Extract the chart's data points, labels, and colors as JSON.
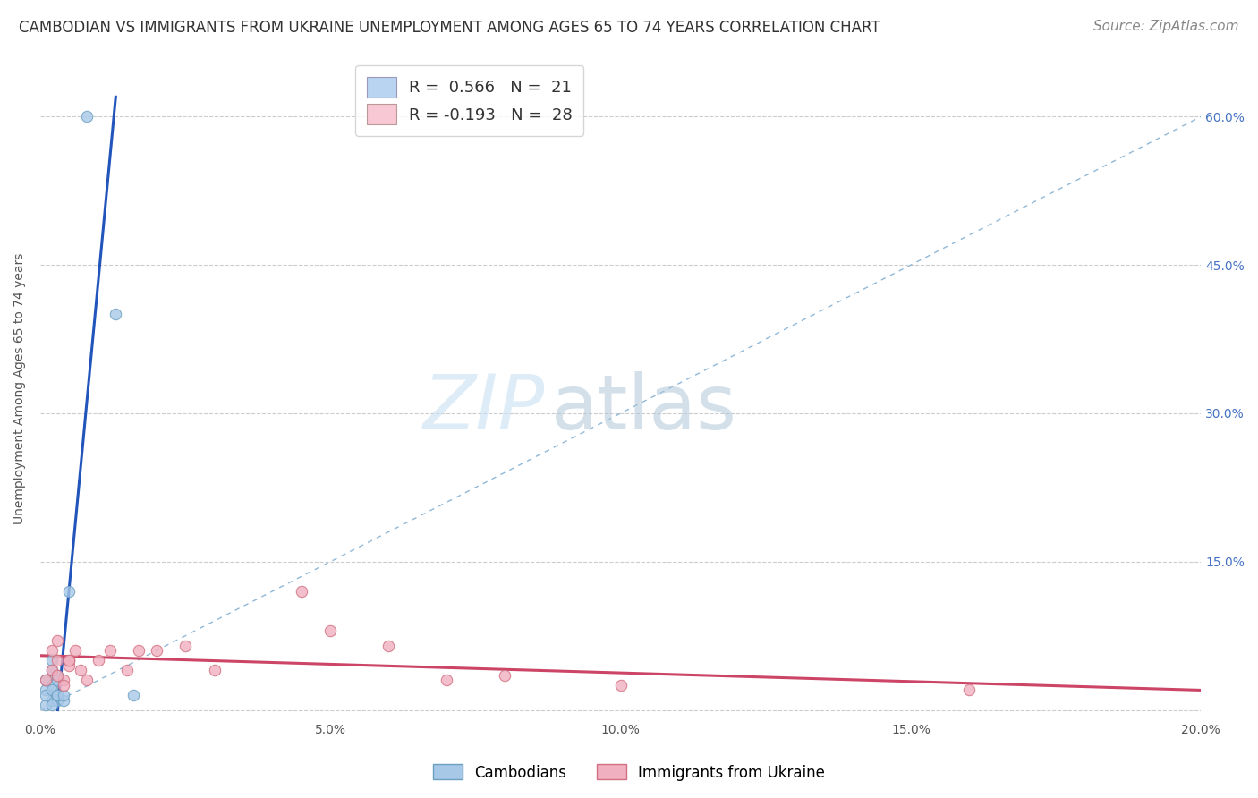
{
  "title": "CAMBODIAN VS IMMIGRANTS FROM UKRAINE UNEMPLOYMENT AMONG AGES 65 TO 74 YEARS CORRELATION CHART",
  "source": "Source: ZipAtlas.com",
  "ylabel": "Unemployment Among Ages 65 to 74 years",
  "xlim": [
    0.0,
    0.2
  ],
  "ylim": [
    -0.01,
    0.66
  ],
  "xtick_positions": [
    0.0,
    0.0125,
    0.025,
    0.0375,
    0.05,
    0.0625,
    0.075,
    0.0875,
    0.1,
    0.1125,
    0.125,
    0.1375,
    0.15,
    0.1625,
    0.175,
    0.1875,
    0.2
  ],
  "xtick_labels": [
    "0.0%",
    "",
    "",
    "",
    "5.0%",
    "",
    "",
    "",
    "10.0%",
    "",
    "",
    "",
    "15.0%",
    "",
    "",
    "",
    "20.0%"
  ],
  "ytick_vals": [
    0.0,
    0.15,
    0.3,
    0.45,
    0.6
  ],
  "ytick_labels_right": [
    "",
    "15.0%",
    "30.0%",
    "45.0%",
    "60.0%"
  ],
  "grid_color": "#cccccc",
  "background_color": "#ffffff",
  "cambodian_color": "#a8c8e8",
  "ukraine_color": "#f0b0c0",
  "cambodian_edge": "#6a9fc0",
  "ukraine_edge": "#d07080",
  "legend_box_color1": "#b8d4f0",
  "legend_box_color2": "#f8c8d4",
  "cambodian_trend_color": "#2255bb",
  "ukraine_trend_color": "#cc4466",
  "ref_line_color": "#90b8d8",
  "cambodian_points_x": [
    0.001,
    0.002,
    0.001,
    0.003,
    0.001,
    0.002,
    0.002,
    0.003,
    0.002,
    0.001,
    0.002,
    0.003,
    0.004,
    0.002,
    0.003,
    0.003,
    0.004,
    0.005,
    0.013,
    0.008,
    0.016
  ],
  "cambodian_points_y": [
    0.005,
    0.01,
    0.02,
    0.01,
    0.03,
    0.025,
    0.04,
    0.035,
    0.05,
    0.015,
    0.02,
    0.015,
    0.01,
    0.005,
    0.03,
    0.015,
    0.015,
    0.12,
    0.4,
    0.6,
    0.015
  ],
  "ukraine_points_x": [
    0.001,
    0.002,
    0.003,
    0.004,
    0.002,
    0.003,
    0.004,
    0.005,
    0.003,
    0.005,
    0.006,
    0.007,
    0.005,
    0.008,
    0.01,
    0.012,
    0.015,
    0.017,
    0.02,
    0.025,
    0.03,
    0.045,
    0.05,
    0.06,
    0.07,
    0.08,
    0.1,
    0.16
  ],
  "ukraine_points_y": [
    0.03,
    0.04,
    0.05,
    0.03,
    0.06,
    0.035,
    0.025,
    0.045,
    0.07,
    0.05,
    0.06,
    0.04,
    0.05,
    0.03,
    0.05,
    0.06,
    0.04,
    0.06,
    0.06,
    0.065,
    0.04,
    0.12,
    0.08,
    0.065,
    0.03,
    0.035,
    0.025,
    0.02
  ],
  "cambodian_trend_x": [
    0.003,
    0.013
  ],
  "cambodian_trend_y": [
    0.0,
    0.62
  ],
  "ukraine_trend_x": [
    0.0,
    0.2
  ],
  "ukraine_trend_y": [
    0.055,
    0.02
  ],
  "ref_line_x": [
    0.0,
    0.2
  ],
  "ref_line_y": [
    0.0,
    0.6
  ],
  "title_fontsize": 12,
  "axis_label_fontsize": 10,
  "tick_fontsize": 10,
  "legend_fontsize": 13,
  "source_fontsize": 11
}
